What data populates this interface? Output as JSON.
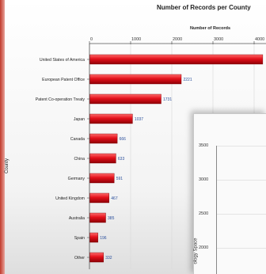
{
  "chart_data": {
    "type": "bar",
    "orientation": "horizontal",
    "title": "Number of Records per County",
    "xlabel": "Number of Records",
    "ylabel": "County",
    "xticks": [
      "0",
      "1000",
      "2000",
      "3000",
      "4000"
    ],
    "xlim": [
      0,
      4200
    ],
    "categories": [
      "United States of America",
      "European Patent Office",
      "Patent Co-operation Treaty",
      "Japan",
      "Canada",
      "China",
      "Germany",
      "United Kingdom",
      "Australia",
      "Spain",
      "Other"
    ],
    "values": [
      4200,
      2221,
      1731,
      1037,
      666,
      633,
      591,
      467,
      385,
      196,
      332
    ],
    "data_labels": [
      "",
      "2221",
      "1731",
      "1037",
      "666",
      "633",
      "591",
      "467",
      "385",
      "196",
      "332"
    ],
    "bar_color": "#e3101a",
    "grid": true
  },
  "overlay_chart": {
    "yticks": [
      "3500",
      "3000",
      "2500",
      "2000"
    ],
    "ylabel": "ology Space"
  }
}
